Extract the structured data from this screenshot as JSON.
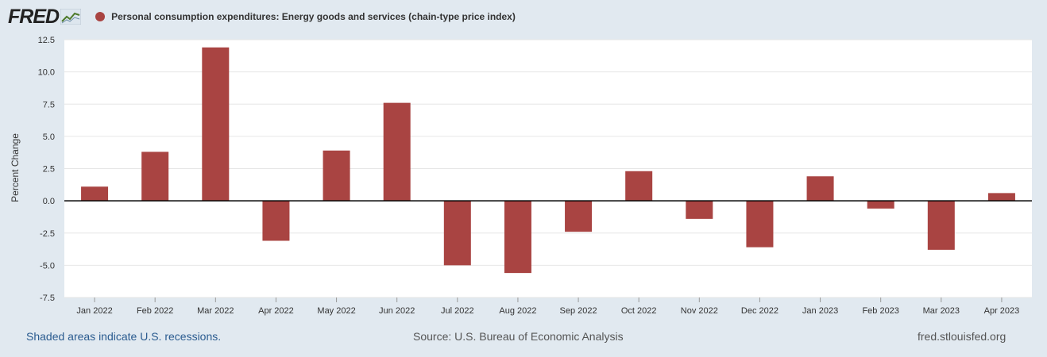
{
  "header": {
    "logo_text": "FRED",
    "series_label": "Personal consumption expenditures: Energy goods and services (chain-type price index)"
  },
  "colors": {
    "bar": "#a94442",
    "background": "#e1e9f0",
    "plot": "#ffffff"
  },
  "footer": {
    "recession_note": "Shaded areas indicate U.S. recessions.",
    "source": "Source: U.S. Bureau of Economic Analysis",
    "site": "fred.stlouisfed.org"
  },
  "chart_data": {
    "type": "bar",
    "title": "Personal consumption expenditures: Energy goods and services (chain-type price index)",
    "xlabel": "",
    "ylabel": "Percent Change",
    "ylim": [
      -7.5,
      12.5
    ],
    "yticks": [
      "12.5",
      "10.0",
      "7.5",
      "5.0",
      "2.5",
      "0.0",
      "-2.5",
      "-5.0",
      "-7.5"
    ],
    "ytick_values": [
      12.5,
      10.0,
      7.5,
      5.0,
      2.5,
      0.0,
      -2.5,
      -5.0,
      -7.5
    ],
    "grid": true,
    "categories": [
      "Jan 2022",
      "Feb 2022",
      "Mar 2022",
      "Apr 2022",
      "May 2022",
      "Jun 2022",
      "Jul 2022",
      "Aug 2022",
      "Sep 2022",
      "Oct 2022",
      "Nov 2022",
      "Dec 2022",
      "Jan 2023",
      "Feb 2023",
      "Mar 2023",
      "Apr 2023"
    ],
    "values": [
      1.1,
      3.8,
      11.9,
      -3.1,
      3.9,
      7.6,
      -5.0,
      -5.6,
      -2.4,
      2.3,
      -1.4,
      -3.6,
      1.9,
      -0.6,
      -3.8,
      0.6
    ]
  }
}
